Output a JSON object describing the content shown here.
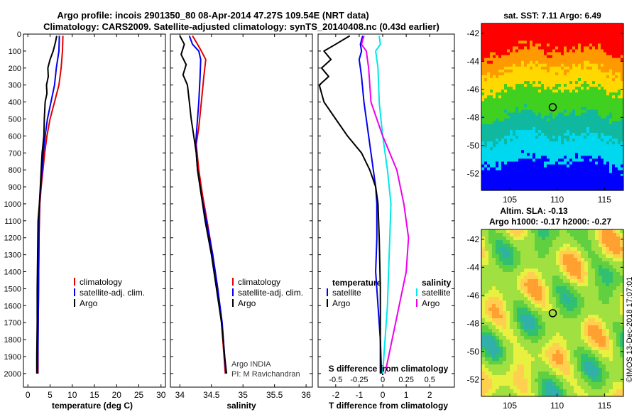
{
  "title_line1": "Argo profile: incois 2901350_80 08-Apr-2014 47.27S 109.54E (NRT data)",
  "title_line2": "Climatology: CARS2009. Satellite-adjusted climatology: synTS_20140408.nc (0.43d earlier)",
  "side_label": "©IMOS 13-Dec-2018 17:07:01",
  "colors": {
    "climatology": "#e00000",
    "satellite": "#0000ee",
    "argo": "#000000",
    "sal_satellite": "#00e8e8",
    "sal_argo": "#ee00ee",
    "marker": "#000000"
  },
  "legend_common": {
    "climatology": "climatology",
    "satellite": "satellite-adj. clim.",
    "argo": "Argo"
  },
  "legend_diff": {
    "temperature_title": "temperature",
    "salinity_title": "salinity",
    "satellite": "satellite",
    "argo": "Argo"
  },
  "float_info": {
    "line1": "Argo INDIA",
    "line2": "PI: M Ravichandran"
  },
  "chart_data": [
    {
      "id": "temperature",
      "type": "line",
      "xlabel": "temperature (deg C)",
      "ylabel": "",
      "xlim": [
        -1,
        31
      ],
      "ylim": [
        2080,
        0
      ],
      "xticks": [
        0,
        5,
        10,
        15,
        20,
        25,
        30
      ],
      "yticks": [
        0,
        100,
        200,
        300,
        400,
        500,
        600,
        700,
        800,
        900,
        1000,
        1100,
        1200,
        1300,
        1400,
        1500,
        1600,
        1700,
        1800,
        1900,
        2000
      ],
      "ytick_labels": [
        "0",
        "100",
        "200",
        "300",
        "400",
        "500",
        "600",
        "700",
        "800",
        "900",
        "1000",
        "1100",
        "1200",
        "1300",
        "1400",
        "1500",
        "1600",
        "1700",
        "1800",
        "1900",
        "2000"
      ],
      "series": [
        {
          "name": "climatology",
          "color_key": "climatology",
          "x": [
            7.9,
            7.8,
            7.5,
            7.0,
            6.0,
            5.0,
            4.3,
            3.8,
            3.4,
            3.0,
            2.7,
            2.5,
            2.4,
            2.3,
            2.3
          ],
          "y": [
            10,
            100,
            200,
            300,
            400,
            500,
            600,
            700,
            800,
            900,
            1000,
            1200,
            1500,
            1800,
            2000
          ]
        },
        {
          "name": "satellite-adj. clim.",
          "color_key": "satellite",
          "x": [
            7.1,
            7.0,
            6.4,
            6.0,
            5.2,
            4.4,
            3.9,
            3.5,
            3.2,
            2.9,
            2.6,
            2.5,
            2.4,
            2.3,
            2.2
          ],
          "y": [
            10,
            100,
            200,
            300,
            400,
            500,
            600,
            700,
            800,
            900,
            1000,
            1200,
            1500,
            1800,
            2000
          ]
        },
        {
          "name": "Argo",
          "color_key": "argo",
          "x": [
            6.5,
            6.2,
            5.7,
            5.0,
            4.5,
            4.6,
            4.2,
            4.3,
            3.9,
            3.7,
            3.6,
            3.2,
            3.0,
            2.8,
            2.6,
            2.3,
            2.2,
            2.1,
            2.1,
            2.0,
            2.0
          ],
          "y": [
            10,
            50,
            100,
            150,
            200,
            250,
            300,
            350,
            400,
            500,
            600,
            700,
            800,
            900,
            1000,
            1100,
            1300,
            1500,
            1700,
            1900,
            2000
          ]
        }
      ]
    },
    {
      "id": "salinity",
      "type": "line",
      "xlabel": "salinity",
      "ylabel": "",
      "xlim": [
        33.85,
        36.1
      ],
      "ylim": [
        2080,
        0
      ],
      "xticks": [
        34,
        34.5,
        35,
        35.5,
        36
      ],
      "series": [
        {
          "name": "climatology",
          "color_key": "climatology",
          "x": [
            34.2,
            34.28,
            34.34,
            34.41,
            34.38,
            34.34,
            34.3,
            34.26,
            34.3,
            34.36,
            34.43,
            34.52,
            34.6,
            34.66,
            34.7,
            34.72
          ],
          "y": [
            10,
            60,
            100,
            150,
            250,
            400,
            550,
            650,
            800,
            950,
            1100,
            1300,
            1500,
            1700,
            1900,
            2000
          ]
        },
        {
          "name": "satellite-adj. clim.",
          "color_key": "satellite",
          "x": [
            34.15,
            34.2,
            34.3,
            34.33,
            34.32,
            34.3,
            34.27,
            34.25,
            34.28,
            34.34,
            34.42,
            34.52,
            34.6,
            34.67,
            34.71,
            34.73
          ],
          "y": [
            10,
            60,
            100,
            150,
            250,
            400,
            550,
            650,
            800,
            950,
            1100,
            1300,
            1500,
            1700,
            1900,
            2000
          ]
        },
        {
          "name": "Argo",
          "color_key": "argo",
          "x": [
            34.0,
            34.07,
            34.02,
            34.1,
            34.05,
            34.12,
            34.15,
            34.18,
            34.22,
            34.26,
            34.28,
            34.32,
            34.4,
            34.5,
            34.58,
            34.66,
            34.71,
            34.74
          ],
          "y": [
            10,
            60,
            120,
            180,
            240,
            300,
            400,
            500,
            600,
            700,
            800,
            900,
            1100,
            1300,
            1500,
            1700,
            1900,
            2000
          ]
        }
      ]
    },
    {
      "id": "difference",
      "type": "line",
      "xlabel": "T difference from climatology",
      "ylabel": "",
      "xlim": [
        -2.75,
        3.05
      ],
      "ylim": [
        2080,
        0
      ],
      "xticks": [
        -2,
        -1,
        0,
        1,
        2
      ],
      "top_axis": {
        "label": "S difference from climatology",
        "tick_labels": [
          "-0.5",
          "-0.25",
          "0",
          "0.25",
          "0.5"
        ],
        "ticks": [
          -0.5,
          -0.25,
          0,
          0.25,
          0.5
        ],
        "scale": 0.25
      },
      "series": [
        {
          "name": "temperature satellite",
          "color_key": "satellite",
          "x": [
            -0.85,
            -0.95,
            -0.9,
            -1.0,
            -0.95,
            -0.9,
            -0.8,
            -0.7,
            -0.6,
            -0.5,
            -0.4,
            -0.3,
            -0.25,
            -0.25,
            -0.3,
            -0.2,
            -0.1,
            -0.05
          ],
          "y": [
            10,
            60,
            100,
            150,
            200,
            250,
            400,
            500,
            600,
            700,
            800,
            900,
            1000,
            1200,
            1400,
            1600,
            1800,
            2000
          ]
        },
        {
          "name": "temperature Argo",
          "color_key": "argo",
          "x": [
            -1.4,
            -2.0,
            -2.5,
            -2.2,
            -2.6,
            -2.3,
            -2.7,
            -2.5,
            -2.0,
            -1.5,
            -0.9,
            -0.55,
            -0.3,
            -0.2,
            -0.15,
            -0.1,
            -0.1,
            -0.1
          ],
          "y": [
            10,
            60,
            100,
            150,
            200,
            250,
            300,
            400,
            500,
            600,
            700,
            800,
            900,
            1000,
            1200,
            1500,
            1800,
            2000
          ]
        },
        {
          "name": "salinity satellite",
          "color_key": "sal_satellite",
          "x": [
            -0.15,
            -0.1,
            -0.3,
            -0.2,
            -0.15,
            0.0,
            0.2,
            0.35,
            0.3,
            0.25,
            0.2,
            0.1,
            0.0
          ],
          "y": [
            10,
            60,
            100,
            200,
            400,
            600,
            800,
            1000,
            1200,
            1400,
            1600,
            1800,
            2000
          ]
        },
        {
          "name": "salinity Argo",
          "color_key": "sal_argo",
          "x": [
            -0.8,
            -0.9,
            -0.7,
            -0.6,
            -0.5,
            0.0,
            0.6,
            0.9,
            1.1,
            1.0,
            0.7,
            0.4,
            0.1
          ],
          "y": [
            10,
            60,
            100,
            200,
            400,
            600,
            800,
            1000,
            1200,
            1400,
            1600,
            1800,
            2000
          ]
        }
      ]
    },
    {
      "id": "sst_map",
      "type": "heatmap",
      "title": "sat. SST: 7.11 Argo: 6.49",
      "xlim": [
        102,
        117
      ],
      "ylim": [
        -53.2,
        -41.3
      ],
      "xticks": [
        105,
        110,
        115
      ],
      "yticks": [
        -42,
        -44,
        -46,
        -48,
        -50,
        -52
      ],
      "marker": {
        "lon": 109.54,
        "lat": -47.27
      }
    },
    {
      "id": "sla_map",
      "type": "heatmap",
      "title_line1": "Altim. SLA: -0.13",
      "title_line2": "Argo h1000: -0.17 h2000: -0.27",
      "xlim": [
        102,
        117
      ],
      "ylim": [
        -53.2,
        -41.3
      ],
      "xticks": [
        105,
        110,
        115
      ],
      "yticks": [
        -42,
        -44,
        -46,
        -48,
        -50,
        -52
      ],
      "marker": {
        "lon": 109.54,
        "lat": -47.27
      }
    }
  ]
}
